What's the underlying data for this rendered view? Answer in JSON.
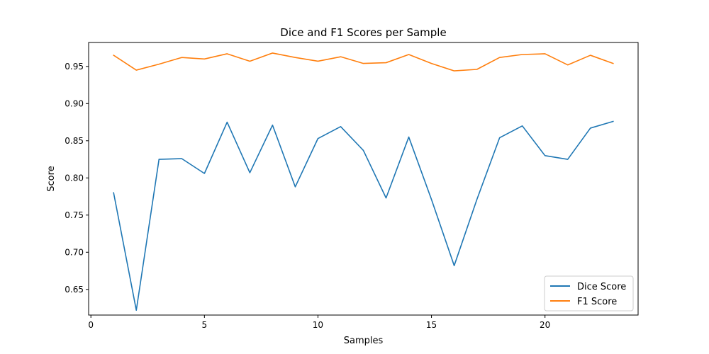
{
  "chart_data": {
    "type": "line",
    "title": "Dice and F1 Scores per Sample",
    "xlabel": "Samples",
    "ylabel": "Score",
    "xlim": [
      -0.1,
      24.1
    ],
    "ylim": [
      0.6155,
      0.9822
    ],
    "x_ticks": [
      0,
      5,
      10,
      15,
      20
    ],
    "y_ticks": [
      0.65,
      0.7,
      0.75,
      0.8,
      0.85,
      0.9,
      0.95
    ],
    "x_tick_labels": [
      "0",
      "5",
      "10",
      "15",
      "20"
    ],
    "y_tick_labels": [
      "0.65",
      "0.70",
      "0.75",
      "0.80",
      "0.85",
      "0.90",
      "0.95"
    ],
    "x": [
      1,
      2,
      3,
      4,
      5,
      6,
      7,
      8,
      9,
      10,
      11,
      12,
      13,
      14,
      15,
      16,
      17,
      18,
      19,
      20,
      21,
      22,
      23
    ],
    "series": [
      {
        "name": "Dice Score",
        "color": "#1f77b4",
        "values": [
          0.78,
          0.622,
          0.825,
          0.826,
          0.806,
          0.875,
          0.807,
          0.871,
          0.788,
          0.853,
          0.869,
          0.837,
          0.773,
          0.855,
          0.771,
          0.682,
          0.771,
          0.854,
          0.87,
          0.83,
          0.825,
          0.867,
          0.876
        ]
      },
      {
        "name": "F1 Score",
        "color": "#ff7f0e",
        "values": [
          0.965,
          0.945,
          0.953,
          0.962,
          0.96,
          0.967,
          0.957,
          0.968,
          0.962,
          0.957,
          0.963,
          0.954,
          0.955,
          0.966,
          0.954,
          0.944,
          0.946,
          0.962,
          0.966,
          0.967,
          0.952,
          0.965,
          0.954
        ]
      }
    ],
    "grid": false,
    "legend_position": "lower-right"
  }
}
